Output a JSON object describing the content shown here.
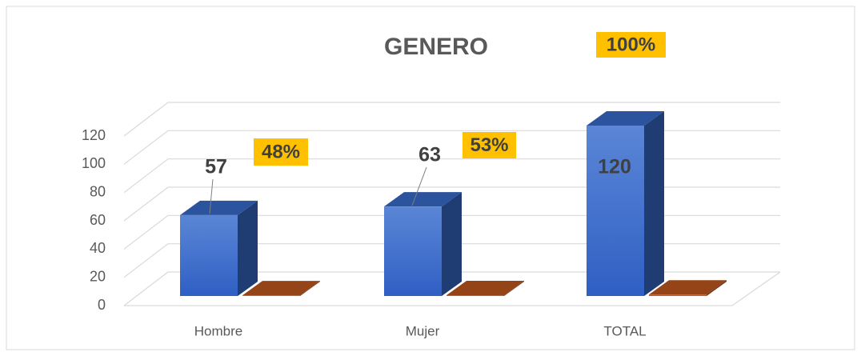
{
  "chart_data": {
    "type": "bar3d",
    "title": "GENERO",
    "categories": [
      "Hombre",
      "Mujer",
      "TOTAL"
    ],
    "series": [
      {
        "color": "#3a6fd1",
        "values": [
          57,
          63,
          120
        ]
      },
      {
        "color": "#c55a1e",
        "values": [
          0.48,
          0.53,
          1
        ],
        "value_labels": [
          "48%",
          "53%",
          "100%"
        ]
      }
    ],
    "ylim": [
      0,
      120
    ],
    "yticks": [
      0,
      20,
      40,
      60,
      80,
      100,
      120
    ],
    "grid": true
  }
}
